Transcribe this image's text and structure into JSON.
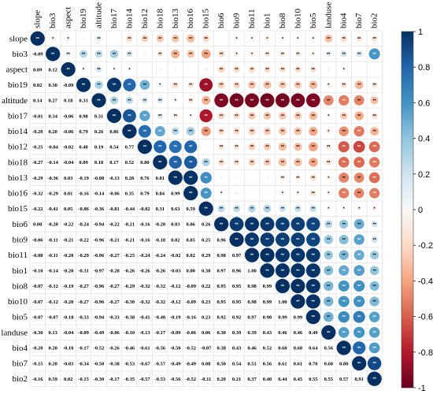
{
  "chart_data": {
    "type": "heatmap",
    "variables": [
      "slope",
      "bio3",
      "aspect",
      "bio19",
      "altitude",
      "bio17",
      "bio14",
      "bio12",
      "bio18",
      "bio13",
      "bio16",
      "bio15",
      "bio6",
      "bio9",
      "bio11",
      "bio1",
      "bio8",
      "bio10",
      "bio5",
      "landuse",
      "bio4",
      "bio7",
      "bio2"
    ],
    "lower_values": [
      [],
      [
        "-0.09"
      ],
      [
        "0.09",
        "0.12"
      ],
      [
        "0.02",
        "0.30",
        "-0.09"
      ],
      [
        "0.14",
        "0.27",
        "0.18",
        "0.33"
      ],
      [
        "-0.01",
        "0.34",
        "-0.06",
        "0.98",
        "0.31"
      ],
      [
        "-0.20",
        "0.20",
        "-0.06",
        "0.79",
        "0.26",
        "0.86"
      ],
      [
        "-0.25",
        "-0.04",
        "-0.02",
        "0.48",
        "0.19",
        "0.54",
        "0.77"
      ],
      [
        "-0.27",
        "-0.14",
        "-0.04",
        "0.09",
        "0.18",
        "0.17",
        "0.52",
        "0.80"
      ],
      [
        "-0.29",
        "-0.36",
        "0.03",
        "-0.19",
        "-0.08",
        "-0.13",
        "0.28",
        "0.76",
        "0.81"
      ],
      [
        "-0.32",
        "-0.29",
        "0.01",
        "-0.16",
        "-0.14",
        "-0.06",
        "0.35",
        "0.79",
        "0.84",
        "0.99"
      ],
      [
        "-0.22",
        "-0.41",
        "0.05",
        "-0.86",
        "-0.36",
        "-0.81",
        "-0.44",
        "-0.02",
        "0.31",
        "0.63",
        "0.59"
      ],
      [
        "0.00",
        "-0.20",
        "-0.22",
        "-0.24",
        "-0.94",
        "-0.22",
        "-0.21",
        "-0.16",
        "-0.20",
        "0.03",
        "0.06",
        "0.26"
      ],
      [
        "-0.06",
        "-0.11",
        "-0.21",
        "-0.22",
        "-0.96",
        "-0.21",
        "-0.21",
        "-0.16",
        "-0.18",
        "0.02",
        "0.05",
        "0.25",
        "0.96"
      ],
      [
        "-0.08",
        "-0.11",
        "-0.20",
        "-0.29",
        "-0.96",
        "-0.27",
        "-0.25",
        "-0.24",
        "-0.24",
        "-0.02",
        "0.02",
        "0.29",
        "0.98",
        "0.97"
      ],
      [
        "-0.10",
        "-0.14",
        "-0.20",
        "-0.31",
        "-0.97",
        "-0.28",
        "-0.26",
        "-0.26",
        "-0.26",
        "-0.03",
        "0.00",
        "0.30",
        "0.97",
        "0.96",
        "1.00"
      ],
      [
        "-0.07",
        "-0.12",
        "-0.19",
        "-0.27",
        "-0.96",
        "-0.27",
        "-0.29",
        "-0.32",
        "-0.32",
        "-0.12",
        "-0.09",
        "0.22",
        "0.95",
        "0.95",
        "0.98",
        "0.99"
      ],
      [
        "-0.07",
        "-0.12",
        "-0.20",
        "-0.27",
        "-0.96",
        "-0.27",
        "-0.30",
        "-0.32",
        "-0.32",
        "-0.12",
        "-0.09",
        "0.23",
        "0.95",
        "0.95",
        "0.98",
        "0.99",
        "1.00"
      ],
      [
        "-0.07",
        "-0.07",
        "-0.18",
        "-0.33",
        "-0.94",
        "-0.33",
        "-0.38",
        "-0.41",
        "-0.40",
        "-0.19",
        "-0.16",
        "0.23",
        "0.92",
        "0.92",
        "0.97",
        "0.98",
        "0.99",
        "0.99"
      ],
      [
        "-0.30",
        "0.13",
        "-0.04",
        "-0.09",
        "-0.49",
        "-0.06",
        "-0.10",
        "-0.13",
        "-0.17",
        "-0.09",
        "-0.06",
        "0.06",
        "0.30",
        "0.39",
        "0.39",
        "0.43",
        "0.46",
        "0.46",
        "0.49"
      ],
      [
        "-0.20",
        "0.20",
        "-0.10",
        "-0.17",
        "-0.52",
        "-0.26",
        "-0.46",
        "-0.61",
        "-0.56",
        "-0.50",
        "-0.52",
        "-0.07",
        "0.38",
        "0.43",
        "0.46",
        "0.52",
        "0.60",
        "0.60",
        "0.64",
        "0.56"
      ],
      [
        "-0.15",
        "0.20",
        "-0.03",
        "-0.34",
        "-0.50",
        "-0.38",
        "-0.53",
        "-0.67",
        "-0.57",
        "-0.49",
        "-0.49",
        "0.08",
        "0.50",
        "0.54",
        "0.51",
        "0.56",
        "0.61",
        "0.61",
        "0.70",
        "0.60",
        "0.80"
      ],
      [
        "-0.16",
        "0.59",
        "0.02",
        "-0.15",
        "-0.30",
        "-0.17",
        "-0.35",
        "-0.57",
        "-0.53",
        "-0.56",
        "-0.52",
        "-0.11",
        "0.20",
        "0.21",
        "0.37",
        "0.40",
        "0.44",
        "0.45",
        "0.55",
        "0.55",
        "0.57",
        "0.91"
      ]
    ],
    "significance_mark": "**",
    "single_mark": "*",
    "colorbar": {
      "ticks": [
        "1",
        "0.8",
        "0.6",
        "0.4",
        "0.2",
        "0",
        "-0.2",
        "-0.4",
        "-0.6",
        "-0.8",
        "-1"
      ],
      "range": [
        -1,
        1
      ]
    },
    "colors": {
      "positive": "#053061",
      "negative": "#67001f",
      "neutral": "#f7f7f7",
      "grid": "#e4e4e4"
    }
  }
}
